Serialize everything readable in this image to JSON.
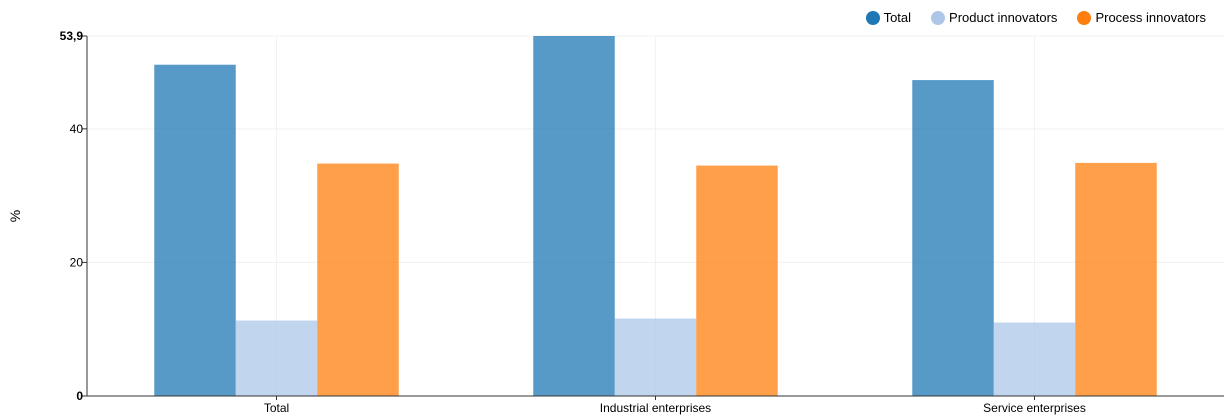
{
  "chart_data": {
    "type": "bar",
    "categories": [
      "Total",
      "Industrial enterprises",
      "Service enterprises"
    ],
    "series": [
      {
        "name": "Total",
        "values": [
          49.6,
          53.9,
          47.3
        ],
        "color": "#1f77b4"
      },
      {
        "name": "Product innovators",
        "values": [
          11.3,
          11.6,
          11.0
        ],
        "color": "#aec7e8"
      },
      {
        "name": "Process innovators",
        "values": [
          34.8,
          34.5,
          34.9
        ],
        "color": "#ff7f0e"
      }
    ],
    "title": "",
    "xlabel": "",
    "ylabel": "%",
    "ylim": [
      0,
      53.9
    ],
    "yticks": [
      {
        "value": 0,
        "label": "0",
        "bold": true
      },
      {
        "value": 20,
        "label": "20",
        "bold": false
      },
      {
        "value": 40,
        "label": "40",
        "bold": false
      },
      {
        "value": 53.9,
        "label": "53,9",
        "bold": true
      }
    ],
    "grid": true,
    "legend_position": "top-right",
    "bar_opacity": 0.75
  }
}
